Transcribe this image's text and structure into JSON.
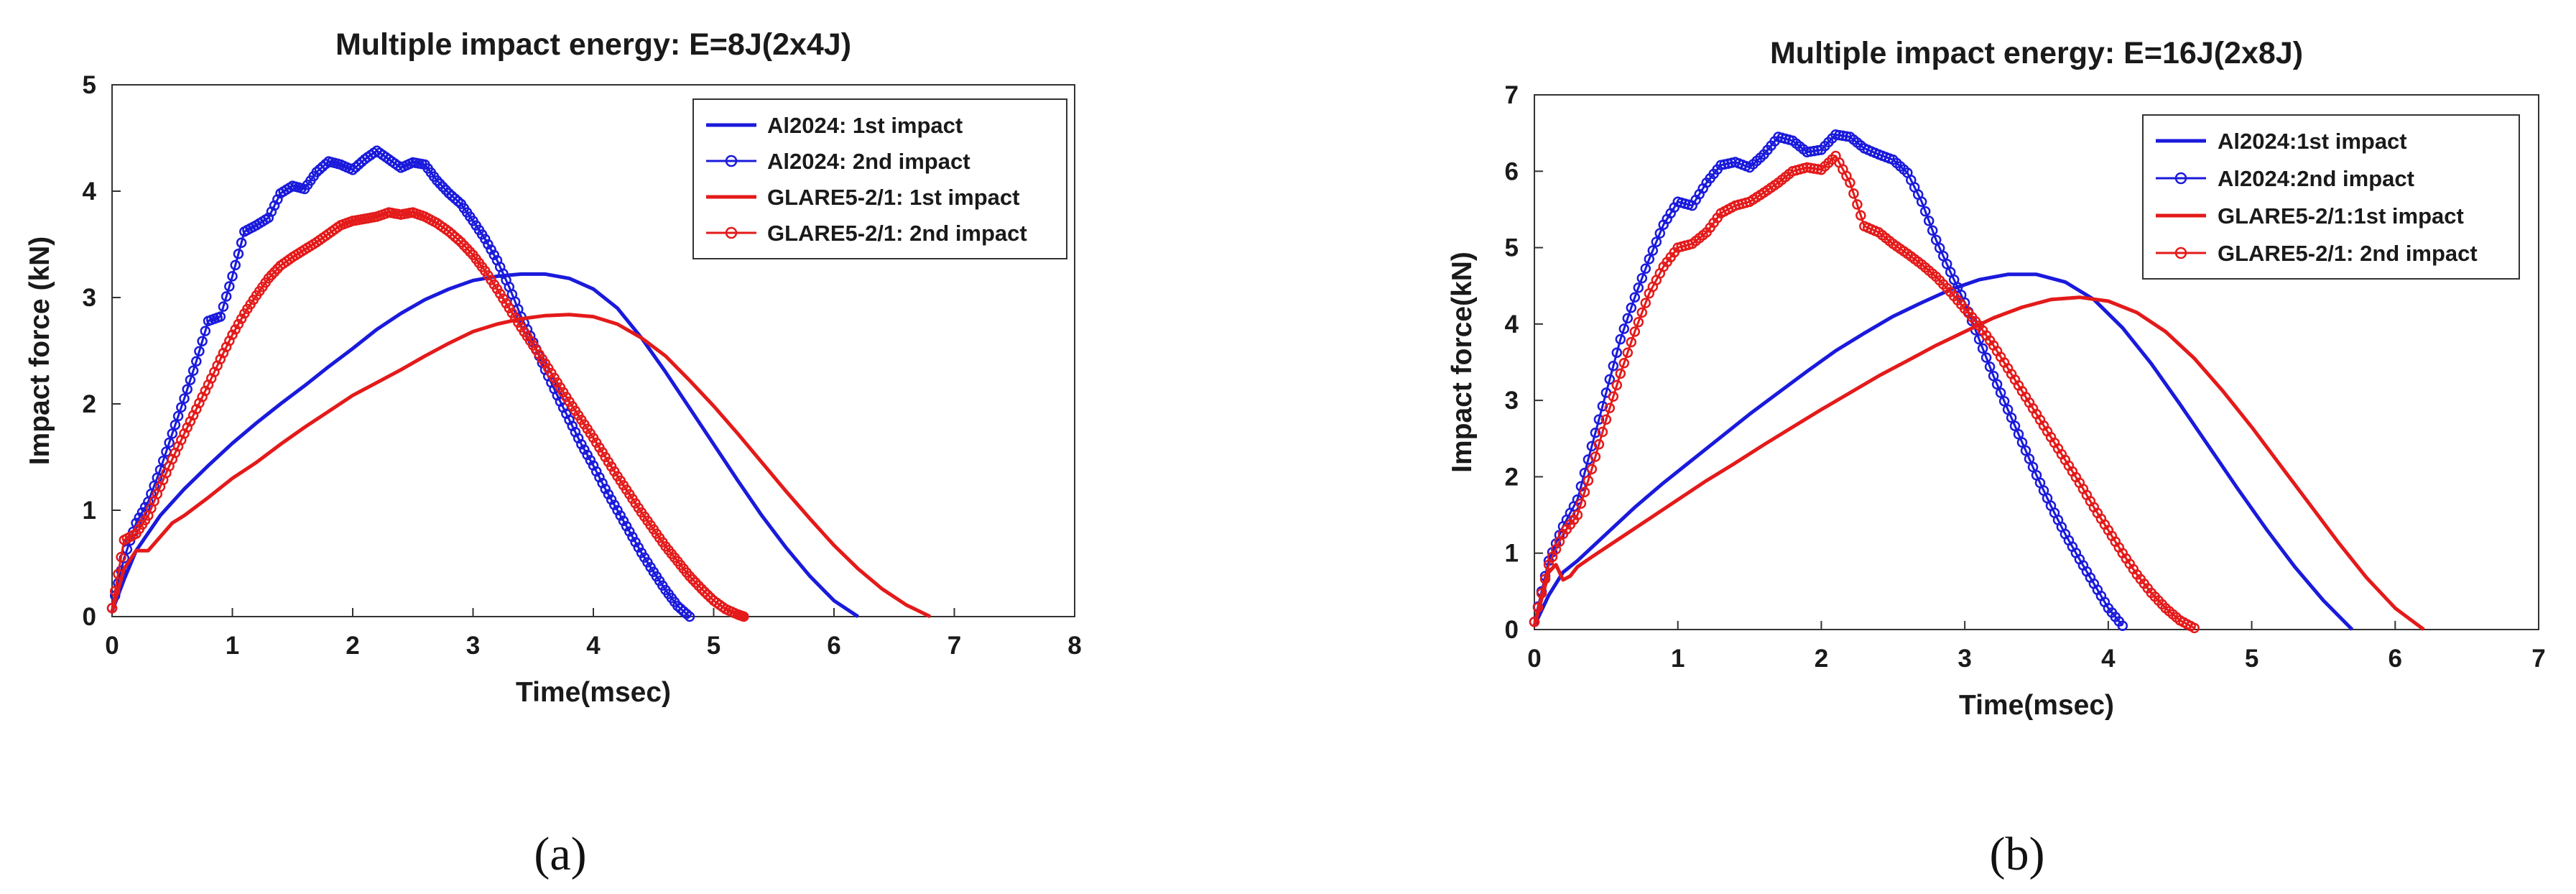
{
  "chart_data": [
    {
      "type": "line",
      "title": "Multiple impact energy: E=8J(2x4J)",
      "xlabel": "Time(msec)",
      "ylabel": "Impact force (kN)",
      "xlim": [
        0,
        8
      ],
      "ylim": [
        0,
        5
      ],
      "xticks": [
        0,
        1,
        2,
        3,
        4,
        5,
        6,
        7,
        8
      ],
      "yticks": [
        0,
        1,
        2,
        3,
        4,
        5
      ],
      "grid": false,
      "legend_position": "top-right",
      "caption": "(a)",
      "series": [
        {
          "name": "Al2024: 1st impact",
          "color": "#1a1adc",
          "marker": "none",
          "linewidth": "thick",
          "x": [
            0,
            0.1,
            0.2,
            0.4,
            0.6,
            0.8,
            1.0,
            1.2,
            1.4,
            1.6,
            1.8,
            2.0,
            2.2,
            2.4,
            2.6,
            2.8,
            3.0,
            3.2,
            3.4,
            3.6,
            3.8,
            4.0,
            4.2,
            4.4,
            4.6,
            4.8,
            5.0,
            5.2,
            5.4,
            5.6,
            5.8,
            6.0,
            6.2
          ],
          "y": [
            0.05,
            0.35,
            0.62,
            0.95,
            1.2,
            1.42,
            1.63,
            1.82,
            2.0,
            2.17,
            2.35,
            2.52,
            2.7,
            2.85,
            2.98,
            3.08,
            3.16,
            3.2,
            3.22,
            3.22,
            3.18,
            3.08,
            2.9,
            2.62,
            2.3,
            1.96,
            1.62,
            1.28,
            0.95,
            0.65,
            0.38,
            0.15,
            0.0
          ]
        },
        {
          "name": "Al2024: 2nd impact",
          "color": "#1a1adc",
          "marker": "circle",
          "x": [
            0,
            0.1,
            0.2,
            0.3,
            0.4,
            0.5,
            0.6,
            0.7,
            0.8,
            0.9,
            1.0,
            1.1,
            1.2,
            1.3,
            1.4,
            1.5,
            1.6,
            1.7,
            1.8,
            1.9,
            2.0,
            2.1,
            2.2,
            2.3,
            2.4,
            2.5,
            2.6,
            2.7,
            2.8,
            2.9,
            3.0,
            3.1,
            3.2,
            3.3,
            3.4,
            3.5,
            3.6,
            3.7,
            3.8,
            3.9,
            4.0,
            4.1,
            4.2,
            4.3,
            4.4,
            4.5,
            4.6,
            4.7,
            4.8
          ],
          "y": [
            0.08,
            0.55,
            0.88,
            1.08,
            1.38,
            1.72,
            2.05,
            2.4,
            2.78,
            2.82,
            3.2,
            3.62,
            3.68,
            3.75,
            3.98,
            4.05,
            4.02,
            4.18,
            4.28,
            4.25,
            4.2,
            4.3,
            4.38,
            4.3,
            4.22,
            4.27,
            4.25,
            4.1,
            3.98,
            3.88,
            3.72,
            3.55,
            3.35,
            3.1,
            2.82,
            2.58,
            2.32,
            2.08,
            1.85,
            1.62,
            1.42,
            1.2,
            1.0,
            0.8,
            0.6,
            0.42,
            0.25,
            0.1,
            0.0
          ]
        },
        {
          "name": "GLARE5-2/1: 1st impact",
          "color": "#e41a1a",
          "marker": "none",
          "linewidth": "thick",
          "x": [
            0,
            0.1,
            0.2,
            0.3,
            0.4,
            0.5,
            0.6,
            0.8,
            1.0,
            1.2,
            1.4,
            1.6,
            1.8,
            2.0,
            2.2,
            2.4,
            2.6,
            2.8,
            3.0,
            3.2,
            3.4,
            3.6,
            3.8,
            4.0,
            4.2,
            4.4,
            4.6,
            4.8,
            5.0,
            5.2,
            5.4,
            5.6,
            5.8,
            6.0,
            6.2,
            6.4,
            6.6,
            6.8
          ],
          "y": [
            0.05,
            0.45,
            0.62,
            0.62,
            0.75,
            0.88,
            0.95,
            1.12,
            1.3,
            1.45,
            1.62,
            1.78,
            1.93,
            2.08,
            2.2,
            2.32,
            2.45,
            2.57,
            2.68,
            2.75,
            2.8,
            2.83,
            2.84,
            2.82,
            2.75,
            2.62,
            2.45,
            2.22,
            1.98,
            1.72,
            1.45,
            1.18,
            0.92,
            0.67,
            0.45,
            0.26,
            0.11,
            0.0
          ]
        },
        {
          "name": "GLARE5-2/1: 2nd impact",
          "color": "#e41a1a",
          "marker": "circle",
          "x": [
            0,
            0.1,
            0.2,
            0.3,
            0.4,
            0.5,
            0.6,
            0.7,
            0.8,
            0.9,
            1.0,
            1.1,
            1.2,
            1.3,
            1.4,
            1.5,
            1.6,
            1.7,
            1.8,
            1.9,
            2.0,
            2.1,
            2.2,
            2.3,
            2.4,
            2.5,
            2.6,
            2.7,
            2.8,
            2.9,
            3.0,
            3.1,
            3.2,
            3.3,
            3.4,
            3.5,
            3.6,
            3.7,
            3.8,
            3.9,
            4.0,
            4.1,
            4.2,
            4.3,
            4.4,
            4.5,
            4.6,
            4.7,
            4.8,
            4.9,
            5.0,
            5.1,
            5.2,
            5.25
          ],
          "y": [
            0.08,
            0.72,
            0.78,
            0.95,
            1.22,
            1.48,
            1.72,
            1.95,
            2.18,
            2.42,
            2.65,
            2.85,
            3.02,
            3.18,
            3.3,
            3.38,
            3.45,
            3.52,
            3.6,
            3.68,
            3.72,
            3.74,
            3.76,
            3.8,
            3.78,
            3.8,
            3.76,
            3.7,
            3.62,
            3.52,
            3.4,
            3.25,
            3.08,
            2.9,
            2.72,
            2.55,
            2.38,
            2.2,
            2.02,
            1.85,
            1.68,
            1.5,
            1.32,
            1.15,
            0.98,
            0.82,
            0.66,
            0.52,
            0.38,
            0.26,
            0.15,
            0.07,
            0.02,
            0.0
          ]
        }
      ]
    },
    {
      "type": "line",
      "title": "Multiple impact energy: E=16J(2x8J)",
      "xlabel": "Time(msec)",
      "ylabel": "Impact force(kN)",
      "xlim": [
        0,
        7
      ],
      "ylim": [
        0,
        7
      ],
      "xticks": [
        0,
        1,
        2,
        3,
        4,
        5,
        6,
        7
      ],
      "yticks": [
        0,
        1,
        2,
        3,
        4,
        5,
        6,
        7
      ],
      "grid": false,
      "legend_position": "top-right",
      "caption": "(b)",
      "series": [
        {
          "name": "Al2024:1st impact",
          "color": "#1a1adc",
          "marker": "none",
          "linewidth": "thick",
          "x": [
            0,
            0.1,
            0.2,
            0.3,
            0.5,
            0.7,
            0.9,
            1.1,
            1.3,
            1.5,
            1.7,
            1.9,
            2.1,
            2.3,
            2.5,
            2.7,
            2.9,
            3.1,
            3.3,
            3.5,
            3.7,
            3.9,
            4.1,
            4.3,
            4.5,
            4.7,
            4.9,
            5.1,
            5.3,
            5.5,
            5.7
          ],
          "y": [
            0.05,
            0.45,
            0.75,
            0.9,
            1.25,
            1.6,
            1.92,
            2.22,
            2.52,
            2.82,
            3.1,
            3.38,
            3.65,
            3.88,
            4.1,
            4.28,
            4.45,
            4.58,
            4.65,
            4.65,
            4.55,
            4.32,
            3.95,
            3.48,
            2.95,
            2.4,
            1.85,
            1.32,
            0.82,
            0.38,
            0.0
          ]
        },
        {
          "name": "Al2024:2nd impact",
          "color": "#1a1adc",
          "marker": "circle",
          "x": [
            0,
            0.1,
            0.2,
            0.3,
            0.4,
            0.5,
            0.6,
            0.7,
            0.8,
            0.9,
            1.0,
            1.1,
            1.2,
            1.3,
            1.4,
            1.5,
            1.6,
            1.7,
            1.8,
            1.9,
            2.0,
            2.1,
            2.2,
            2.3,
            2.4,
            2.5,
            2.6,
            2.7,
            2.8,
            2.9,
            3.0,
            3.1,
            3.2,
            3.3,
            3.4,
            3.5,
            3.6,
            3.7,
            3.8,
            3.9,
            4.0,
            4.1
          ],
          "y": [
            0.1,
            0.9,
            1.35,
            1.7,
            2.4,
            3.1,
            3.8,
            4.35,
            4.85,
            5.3,
            5.6,
            5.55,
            5.85,
            6.08,
            6.12,
            6.05,
            6.22,
            6.45,
            6.4,
            6.25,
            6.28,
            6.48,
            6.45,
            6.3,
            6.22,
            6.15,
            5.98,
            5.6,
            5.1,
            4.68,
            4.28,
            3.8,
            3.32,
            2.88,
            2.45,
            2.02,
            1.62,
            1.25,
            0.92,
            0.6,
            0.28,
            0.05
          ]
        },
        {
          "name": "GLARE5-2/1:1st impact",
          "color": "#e41a1a",
          "marker": "none",
          "linewidth": "thick",
          "x": [
            0,
            0.1,
            0.15,
            0.2,
            0.25,
            0.3,
            0.4,
            0.6,
            0.8,
            1.0,
            1.2,
            1.4,
            1.6,
            1.8,
            2.0,
            2.2,
            2.4,
            2.6,
            2.8,
            3.0,
            3.2,
            3.4,
            3.6,
            3.8,
            4.0,
            4.2,
            4.4,
            4.6,
            4.8,
            5.0,
            5.2,
            5.4,
            5.6,
            5.8,
            6.0,
            6.2
          ],
          "y": [
            0.05,
            0.75,
            0.85,
            0.65,
            0.7,
            0.82,
            0.95,
            1.2,
            1.45,
            1.7,
            1.95,
            2.18,
            2.42,
            2.65,
            2.88,
            3.1,
            3.32,
            3.52,
            3.72,
            3.9,
            4.08,
            4.22,
            4.32,
            4.35,
            4.3,
            4.15,
            3.9,
            3.55,
            3.12,
            2.65,
            2.15,
            1.65,
            1.15,
            0.68,
            0.28,
            0.0
          ]
        },
        {
          "name": "GLARE5-2/1: 2nd impact",
          "color": "#e41a1a",
          "marker": "circle",
          "x": [
            0,
            0.1,
            0.2,
            0.3,
            0.4,
            0.5,
            0.6,
            0.7,
            0.8,
            0.9,
            1.0,
            1.1,
            1.2,
            1.3,
            1.4,
            1.5,
            1.6,
            1.7,
            1.8,
            1.9,
            2.0,
            2.1,
            2.2,
            2.3,
            2.4,
            2.5,
            2.6,
            2.7,
            2.8,
            2.9,
            3.0,
            3.1,
            3.2,
            3.3,
            3.4,
            3.5,
            3.6,
            3.7,
            3.8,
            3.9,
            4.0,
            4.1,
            4.2,
            4.3,
            4.4,
            4.5,
            4.6
          ],
          "y": [
            0.1,
            0.85,
            1.25,
            1.5,
            2.1,
            2.75,
            3.35,
            3.9,
            4.4,
            4.75,
            5.0,
            5.05,
            5.2,
            5.45,
            5.55,
            5.6,
            5.72,
            5.85,
            6.0,
            6.05,
            6.02,
            6.2,
            5.85,
            5.28,
            5.2,
            5.05,
            4.92,
            4.78,
            4.62,
            4.42,
            4.2,
            3.98,
            3.72,
            3.42,
            3.12,
            2.82,
            2.52,
            2.22,
            1.92,
            1.6,
            1.3,
            1.0,
            0.72,
            0.48,
            0.28,
            0.12,
            0.02
          ]
        }
      ]
    }
  ]
}
